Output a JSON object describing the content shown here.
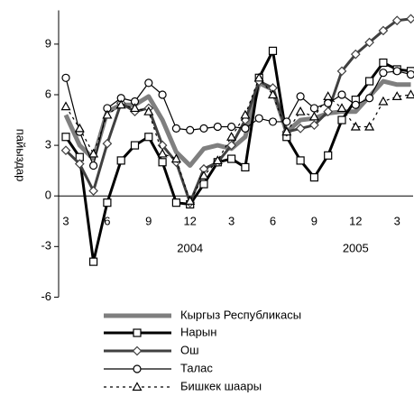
{
  "chart_data": {
    "type": "line",
    "y_label": "пайыздар",
    "categories": [
      "3",
      null,
      null,
      "6",
      null,
      null,
      "9",
      null,
      null,
      "12",
      null,
      null,
      "3",
      null,
      null,
      "6",
      null,
      null,
      "9",
      null,
      null,
      "12",
      null,
      null,
      "3",
      null
    ],
    "annotations": [
      "2004",
      "2005"
    ],
    "ylim": [
      -6,
      11
    ],
    "yticks": [
      -6,
      -3,
      0,
      3,
      6,
      9
    ],
    "series": [
      {
        "name": "Кыргыз Республикасы",
        "color": "#7f7f7f",
        "line_width": 5,
        "marker": "none",
        "dash": false,
        "values": [
          4.8,
          3.0,
          2.2,
          5.0,
          5.4,
          5.4,
          5.9,
          4.5,
          2.6,
          1.8,
          2.8,
          3.0,
          2.8,
          3.5,
          6.7,
          6.3,
          3.8,
          4.5,
          4.6,
          4.9,
          5.0,
          5.0,
          5.9,
          6.8,
          6.6,
          6.6
        ]
      },
      {
        "name": "Нарын",
        "color": "#000000",
        "line_width": 3,
        "marker": "square",
        "dash": false,
        "values": [
          3.5,
          2.3,
          -3.9,
          -0.4,
          2.1,
          3.0,
          3.5,
          2.0,
          -0.4,
          -0.5,
          0.7,
          2.0,
          2.2,
          1.7,
          7.0,
          8.6,
          3.5,
          2.1,
          1.1,
          2.4,
          4.5,
          5.7,
          6.8,
          7.9,
          7.5,
          7.4
        ]
      },
      {
        "name": "Ош",
        "color": "#404040",
        "line_width": 3,
        "marker": "diamond",
        "dash": false,
        "values": [
          2.7,
          1.9,
          0.3,
          3.1,
          5.5,
          5.0,
          5.2,
          3.0,
          2.0,
          -0.4,
          1.6,
          2.0,
          3.0,
          4.5,
          6.8,
          6.4,
          3.8,
          4.0,
          4.2,
          5.0,
          7.4,
          8.4,
          9.1,
          9.8,
          10.4,
          10.5
        ]
      },
      {
        "name": "Талас",
        "color": "#000000",
        "line_width": 1.2,
        "marker": "circle",
        "dash": false,
        "values": [
          7.0,
          3.8,
          1.8,
          5.2,
          5.8,
          5.6,
          6.7,
          6.0,
          4.0,
          3.9,
          4.0,
          4.1,
          4.1,
          4.0,
          4.6,
          4.4,
          4.4,
          5.9,
          5.2,
          5.5,
          6.0,
          5.4,
          5.8,
          7.3,
          7.4,
          7.2
        ]
      },
      {
        "name": "Бишкек шаары",
        "color": "#000000",
        "line_width": 1.2,
        "marker": "triangle",
        "dash": true,
        "values": [
          5.3,
          4.0,
          2.5,
          4.8,
          5.4,
          5.2,
          5.0,
          2.5,
          2.2,
          -0.3,
          1.2,
          2.1,
          3.5,
          4.8,
          7.0,
          6.0,
          3.8,
          5.0,
          4.7,
          5.9,
          5.2,
          4.1,
          4.1,
          5.6,
          5.9,
          6.0
        ]
      }
    ]
  }
}
